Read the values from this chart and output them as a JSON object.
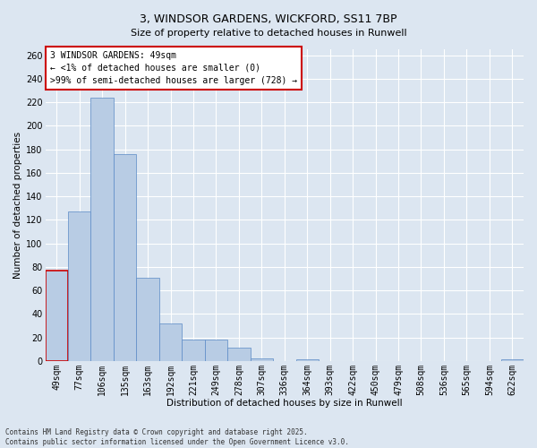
{
  "title": "3, WINDSOR GARDENS, WICKFORD, SS11 7BP",
  "subtitle": "Size of property relative to detached houses in Runwell",
  "xlabel": "Distribution of detached houses by size in Runwell",
  "ylabel": "Number of detached properties",
  "categories": [
    "49sqm",
    "77sqm",
    "106sqm",
    "135sqm",
    "163sqm",
    "192sqm",
    "221sqm",
    "249sqm",
    "278sqm",
    "307sqm",
    "336sqm",
    "364sqm",
    "393sqm",
    "422sqm",
    "450sqm",
    "479sqm",
    "508sqm",
    "536sqm",
    "565sqm",
    "594sqm",
    "622sqm"
  ],
  "values": [
    77,
    127,
    224,
    176,
    71,
    32,
    18,
    18,
    11,
    2,
    0,
    1,
    0,
    0,
    0,
    0,
    0,
    0,
    0,
    0,
    1
  ],
  "bar_color": "#b8cce4",
  "bar_edge_color": "#5a8ac6",
  "background_color": "#dce6f1",
  "grid_color": "#ffffff",
  "annotation_text": "3 WINDSOR GARDENS: 49sqm\n← <1% of detached houses are smaller (0)\n>99% of semi-detached houses are larger (728) →",
  "annotation_box_color": "#ffffff",
  "annotation_box_edge_color": "#cc0000",
  "ylim": [
    0,
    265
  ],
  "yticks": [
    0,
    20,
    40,
    60,
    80,
    100,
    120,
    140,
    160,
    180,
    200,
    220,
    240,
    260
  ],
  "footer_line1": "Contains HM Land Registry data © Crown copyright and database right 2025.",
  "footer_line2": "Contains public sector information licensed under the Open Government Licence v3.0.",
  "property_bar_index": 0,
  "title_fontsize": 9,
  "subtitle_fontsize": 8,
  "axis_label_fontsize": 7.5,
  "tick_fontsize": 7,
  "annotation_fontsize": 7,
  "footer_fontsize": 5.5
}
